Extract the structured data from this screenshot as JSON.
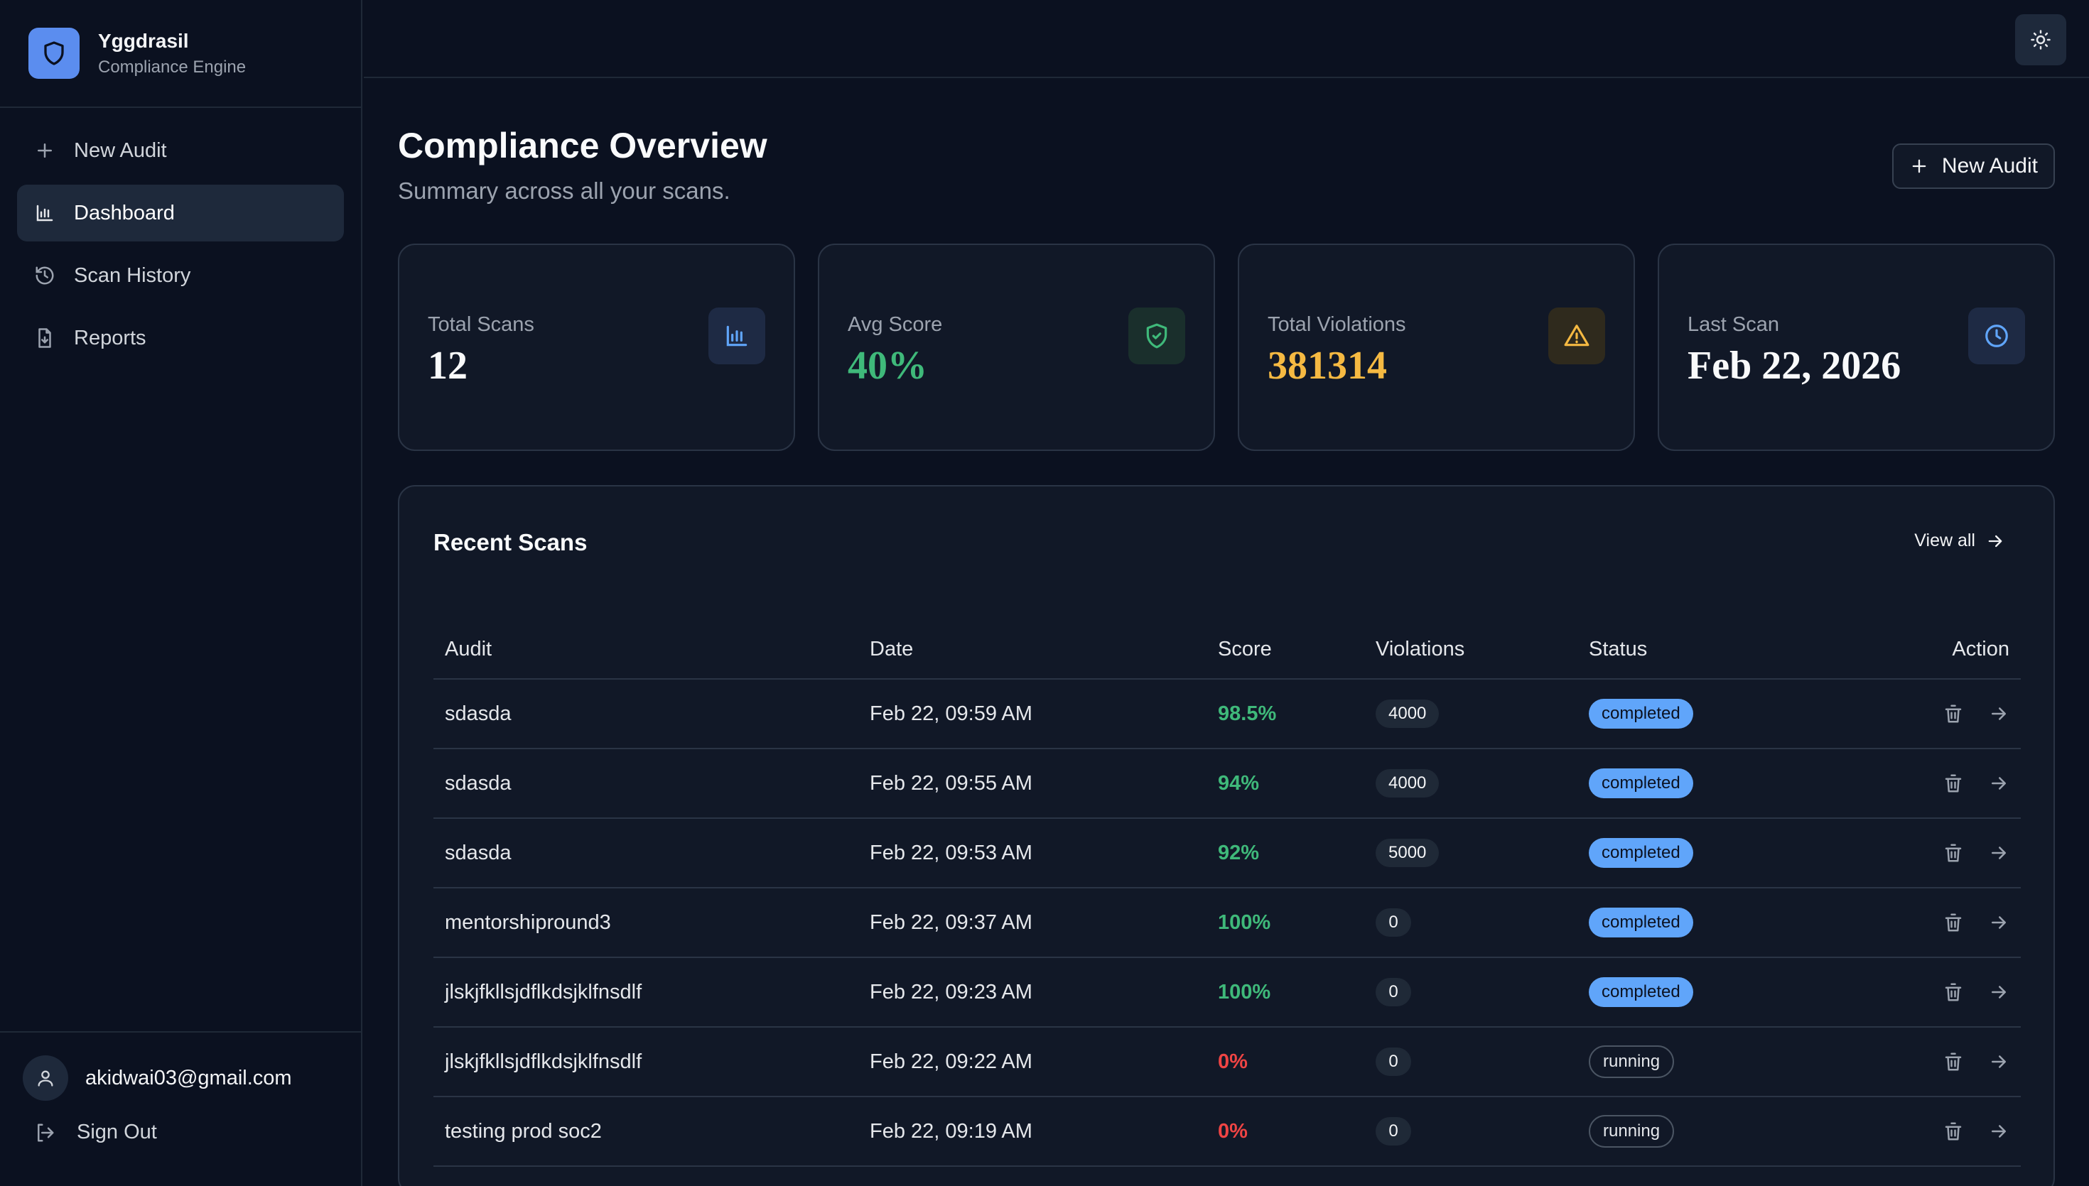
{
  "brand": {
    "name": "Yggdrasil",
    "subtitle": "Compliance Engine",
    "accent": "#5b8def"
  },
  "nav": {
    "items": [
      {
        "label": "New Audit",
        "icon": "plus-icon"
      },
      {
        "label": "Dashboard",
        "icon": "bar-chart-icon",
        "active": true
      },
      {
        "label": "Scan History",
        "icon": "history-icon"
      },
      {
        "label": "Reports",
        "icon": "file-download-icon"
      }
    ]
  },
  "user": {
    "email": "akidwai03@gmail.com",
    "signout_label": "Sign Out"
  },
  "page": {
    "title": "Compliance Overview",
    "subtitle": "Summary across all your scans.",
    "new_audit_label": "New Audit"
  },
  "stats": [
    {
      "label": "Total Scans",
      "value": "12",
      "icon": "bar-chart-icon",
      "color": "#f9fafb"
    },
    {
      "label": "Avg Score",
      "value": "40%",
      "icon": "shield-check-icon",
      "color": "#3fb97a"
    },
    {
      "label": "Total Violations",
      "value": "381314",
      "icon": "warning-icon",
      "color": "#f5b942"
    },
    {
      "label": "Last Scan",
      "value": "Feb 22, 2026",
      "icon": "clock-icon",
      "color": "#f9fafb"
    }
  ],
  "recent": {
    "title": "Recent Scans",
    "view_all_label": "View all",
    "columns": [
      "Audit",
      "Date",
      "Score",
      "Violations",
      "Status",
      "Action"
    ],
    "rows": [
      {
        "audit": "sdasda",
        "date": "Feb 22, 09:59 AM",
        "score": "98.5%",
        "violations": "4000",
        "status": "completed"
      },
      {
        "audit": "sdasda",
        "date": "Feb 22, 09:55 AM",
        "score": "94%",
        "violations": "4000",
        "status": "completed"
      },
      {
        "audit": "sdasda",
        "date": "Feb 22, 09:53 AM",
        "score": "92%",
        "violations": "5000",
        "status": "completed"
      },
      {
        "audit": "mentorshipround3",
        "date": "Feb 22, 09:37 AM",
        "score": "100%",
        "violations": "0",
        "status": "completed"
      },
      {
        "audit": "jlskjfkllsjdflkdsjklfnsdlf",
        "date": "Feb 22, 09:23 AM",
        "score": "100%",
        "violations": "0",
        "status": "completed"
      },
      {
        "audit": "jlskjfkllsjdflkdsjklfnsdlf",
        "date": "Feb 22, 09:22 AM",
        "score": "0%",
        "violations": "0",
        "status": "running"
      },
      {
        "audit": "testing prod soc2",
        "date": "Feb 22, 09:19 AM",
        "score": "0%",
        "violations": "0",
        "status": "running"
      }
    ]
  }
}
